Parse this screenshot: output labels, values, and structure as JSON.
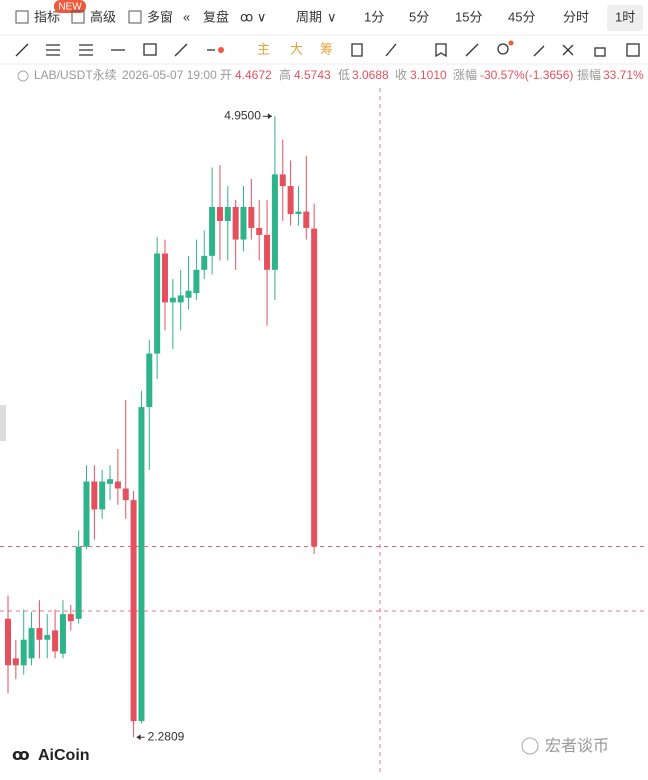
{
  "toolbar": {
    "items": [
      "指标",
      "高级",
      "多窗",
      "复盘",
      "周期"
    ],
    "badge": "NEW",
    "periods": [
      "1分",
      "5分",
      "15分",
      "45分",
      "分时",
      "1时"
    ],
    "tools": [
      "主",
      "大",
      "筹"
    ]
  },
  "info": {
    "symbol": "LAB/USDT永续",
    "time": "2026-05-07 19:00",
    "open_label": "开",
    "open": "4.4672",
    "high_label": "高",
    "high": "4.5743",
    "low_label": "低",
    "low": "3.0688",
    "close_label": "收",
    "close": "3.1010",
    "change_label": "涨幅",
    "change": "-30.57%(-1.3656)",
    "amplitude_label": "振幅",
    "amplitude": "33.71%"
  },
  "chart_data": {
    "type": "candlestick",
    "up_color": "#2eb38b",
    "down_color": "#e5505f",
    "ylim": [
      2.14,
      5.05
    ],
    "high_label": "4.9500",
    "low_label": "2.2809",
    "open": [
      2.79,
      2.62,
      2.59,
      2.62,
      2.75,
      2.7,
      2.74,
      2.64,
      2.81,
      2.79,
      3.1,
      3.38,
      3.26,
      3.37,
      3.38,
      3.35,
      3.3,
      2.35,
      3.7,
      3.93,
      4.36,
      4.15,
      4.15,
      4.17,
      4.19,
      4.29,
      4.35,
      4.56,
      4.5,
      4.56,
      4.42,
      4.56,
      4.47,
      4.44,
      4.29,
      4.7,
      4.65,
      4.53,
      4.54,
      4.4672
    ],
    "high": [
      2.89,
      2.7,
      2.83,
      2.82,
      2.87,
      2.81,
      2.83,
      2.87,
      2.85,
      3.17,
      3.45,
      3.45,
      3.43,
      3.45,
      3.52,
      3.73,
      3.34,
      3.77,
      3.99,
      4.43,
      4.42,
      4.25,
      4.29,
      4.35,
      4.42,
      4.46,
      4.73,
      4.74,
      4.65,
      4.59,
      4.65,
      4.68,
      4.59,
      4.59,
      4.95,
      4.85,
      4.76,
      4.65,
      4.78,
      4.5743
    ],
    "low": [
      2.47,
      2.53,
      2.55,
      2.59,
      2.62,
      2.62,
      2.62,
      2.62,
      2.74,
      2.77,
      3.09,
      3.13,
      3.22,
      3.3,
      3.28,
      3.22,
      2.2809,
      2.34,
      3.43,
      3.82,
      4.03,
      3.95,
      4.03,
      4.12,
      4.16,
      4.25,
      4.27,
      4.33,
      4.33,
      4.29,
      4.37,
      4.42,
      4.33,
      4.05,
      4.16,
      4.5,
      4.48,
      4.48,
      4.42,
      3.0688
    ],
    "close": [
      2.59,
      2.59,
      2.7,
      2.75,
      2.7,
      2.72,
      2.65,
      2.81,
      2.78,
      3.1,
      3.38,
      3.26,
      3.38,
      3.39,
      3.35,
      3.3,
      2.35,
      3.7,
      3.93,
      4.36,
      4.15,
      4.17,
      4.18,
      4.2,
      4.29,
      4.35,
      4.56,
      4.5,
      4.56,
      4.42,
      4.56,
      4.47,
      4.44,
      4.29,
      4.7,
      4.65,
      4.53,
      4.54,
      4.47,
      3.101
    ]
  },
  "watermark": {
    "logo": "AiCoin",
    "author": "宏者谈币"
  }
}
